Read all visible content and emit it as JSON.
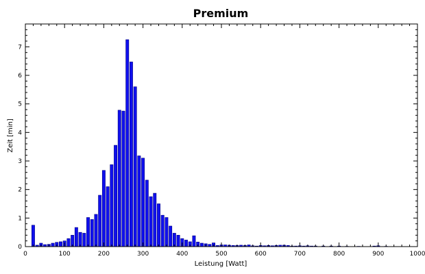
{
  "chart_data": {
    "type": "bar",
    "title": "Premium",
    "xlabel": "Leistung [Watt]",
    "ylabel": "Zeit [min]",
    "xlim": [
      0,
      1000
    ],
    "ylim": [
      0,
      7.8
    ],
    "xticks": [
      0,
      100,
      200,
      300,
      400,
      500,
      600,
      700,
      800,
      900,
      1000
    ],
    "yticks": [
      0,
      1,
      2,
      3,
      4,
      5,
      6,
      7
    ],
    "bin_width": 10,
    "grid": false,
    "bar_color": "#1010ee",
    "bar_edge_color": "#000080",
    "points": [
      {
        "x": 20,
        "y": 0.75
      },
      {
        "x": 30,
        "y": 0.05
      },
      {
        "x": 40,
        "y": 0.12
      },
      {
        "x": 50,
        "y": 0.07
      },
      {
        "x": 60,
        "y": 0.08
      },
      {
        "x": 70,
        "y": 0.12
      },
      {
        "x": 80,
        "y": 0.15
      },
      {
        "x": 90,
        "y": 0.17
      },
      {
        "x": 100,
        "y": 0.2
      },
      {
        "x": 110,
        "y": 0.28
      },
      {
        "x": 120,
        "y": 0.4
      },
      {
        "x": 130,
        "y": 0.67
      },
      {
        "x": 140,
        "y": 0.5
      },
      {
        "x": 150,
        "y": 0.47
      },
      {
        "x": 160,
        "y": 1.02
      },
      {
        "x": 170,
        "y": 0.95
      },
      {
        "x": 180,
        "y": 1.13
      },
      {
        "x": 190,
        "y": 1.8
      },
      {
        "x": 200,
        "y": 2.67
      },
      {
        "x": 210,
        "y": 2.1
      },
      {
        "x": 220,
        "y": 2.87
      },
      {
        "x": 230,
        "y": 3.55
      },
      {
        "x": 240,
        "y": 4.78
      },
      {
        "x": 250,
        "y": 4.75
      },
      {
        "x": 260,
        "y": 7.25
      },
      {
        "x": 270,
        "y": 6.47
      },
      {
        "x": 280,
        "y": 5.6
      },
      {
        "x": 290,
        "y": 3.18
      },
      {
        "x": 300,
        "y": 3.1
      },
      {
        "x": 310,
        "y": 2.33
      },
      {
        "x": 320,
        "y": 1.75
      },
      {
        "x": 330,
        "y": 1.87
      },
      {
        "x": 340,
        "y": 1.5
      },
      {
        "x": 350,
        "y": 1.1
      },
      {
        "x": 360,
        "y": 1.02
      },
      {
        "x": 370,
        "y": 0.72
      },
      {
        "x": 380,
        "y": 0.47
      },
      {
        "x": 390,
        "y": 0.4
      },
      {
        "x": 400,
        "y": 0.28
      },
      {
        "x": 410,
        "y": 0.23
      },
      {
        "x": 420,
        "y": 0.17
      },
      {
        "x": 430,
        "y": 0.38
      },
      {
        "x": 440,
        "y": 0.16
      },
      {
        "x": 450,
        "y": 0.12
      },
      {
        "x": 460,
        "y": 0.1
      },
      {
        "x": 470,
        "y": 0.08
      },
      {
        "x": 480,
        "y": 0.13
      },
      {
        "x": 490,
        "y": 0.04
      },
      {
        "x": 500,
        "y": 0.06
      },
      {
        "x": 510,
        "y": 0.06
      },
      {
        "x": 520,
        "y": 0.05
      },
      {
        "x": 530,
        "y": 0.04
      },
      {
        "x": 540,
        "y": 0.04
      },
      {
        "x": 550,
        "y": 0.05
      },
      {
        "x": 560,
        "y": 0.04
      },
      {
        "x": 570,
        "y": 0.06
      },
      {
        "x": 580,
        "y": 0.03
      },
      {
        "x": 590,
        "y": 0.02
      },
      {
        "x": 600,
        "y": 0.04
      },
      {
        "x": 610,
        "y": 0.03
      },
      {
        "x": 620,
        "y": 0.04
      },
      {
        "x": 630,
        "y": 0.03
      },
      {
        "x": 640,
        "y": 0.04
      },
      {
        "x": 650,
        "y": 0.05
      },
      {
        "x": 660,
        "y": 0.05
      },
      {
        "x": 670,
        "y": 0.04
      },
      {
        "x": 680,
        "y": 0.02
      },
      {
        "x": 690,
        "y": 0.02
      },
      {
        "x": 700,
        "y": 0.03
      },
      {
        "x": 710,
        "y": 0.02
      },
      {
        "x": 720,
        "y": 0.03
      },
      {
        "x": 730,
        "y": 0.02
      },
      {
        "x": 740,
        "y": 0.02
      },
      {
        "x": 760,
        "y": 0.02
      },
      {
        "x": 780,
        "y": 0.02
      },
      {
        "x": 800,
        "y": 0.02
      },
      {
        "x": 820,
        "y": 0.01
      },
      {
        "x": 850,
        "y": 0.01
      },
      {
        "x": 890,
        "y": 0.02
      },
      {
        "x": 900,
        "y": 0.03
      },
      {
        "x": 920,
        "y": 0.01
      }
    ]
  }
}
